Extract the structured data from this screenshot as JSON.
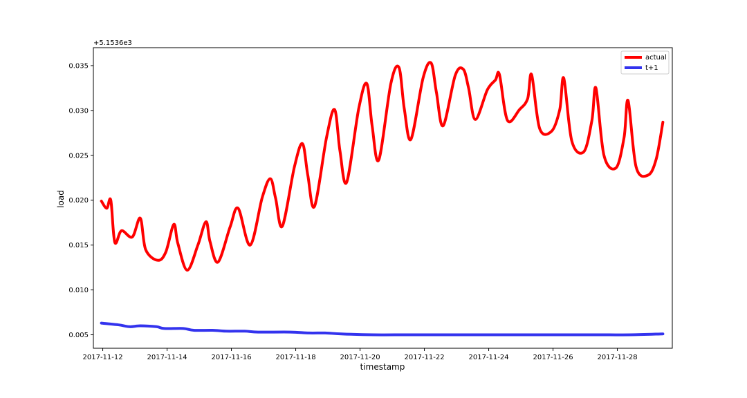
{
  "chart_data": {
    "type": "line",
    "title": "",
    "xlabel": "timestamp",
    "ylabel": "load",
    "offset_label": "+5.1536e3",
    "x_tick_labels": [
      "2017-11-12",
      "2017-11-14",
      "2017-11-16",
      "2017-11-18",
      "2017-11-20",
      "2017-11-22",
      "2017-11-24",
      "2017-11-26",
      "2017-11-28"
    ],
    "y_tick_labels": [
      "0.005",
      "0.010",
      "0.015",
      "0.020",
      "0.025",
      "0.030",
      "0.035"
    ],
    "y_ticks": [
      0.005,
      0.01,
      0.015,
      0.02,
      0.025,
      0.03,
      0.035
    ],
    "xlim": [
      "2017-11-11T17:00",
      "2017-11-29T17:00"
    ],
    "ylim": [
      0.0035,
      0.037
    ],
    "grid": false,
    "legend_position": "top-right",
    "series": [
      {
        "name": "actual",
        "color": "#ff0000",
        "points": [
          [
            "2017-11-11T23:00",
            0.0199
          ],
          [
            "2017-11-12T03:00",
            0.0191
          ],
          [
            "2017-11-12T06:00",
            0.02
          ],
          [
            "2017-11-12T09:00",
            0.0153
          ],
          [
            "2017-11-12T14:00",
            0.0166
          ],
          [
            "2017-11-12T22:00",
            0.0159
          ],
          [
            "2017-11-13T04:00",
            0.018
          ],
          [
            "2017-11-13T08:00",
            0.0145
          ],
          [
            "2017-11-13T17:00",
            0.0133
          ],
          [
            "2017-11-13T23:00",
            0.0142
          ],
          [
            "2017-11-14T05:00",
            0.0173
          ],
          [
            "2017-11-14T08:00",
            0.0152
          ],
          [
            "2017-11-14T15:00",
            0.0122
          ],
          [
            "2017-11-14T23:00",
            0.015
          ],
          [
            "2017-11-15T05:00",
            0.0176
          ],
          [
            "2017-11-15T08:00",
            0.0154
          ],
          [
            "2017-11-15T14:00",
            0.0131
          ],
          [
            "2017-11-15T23:00",
            0.017
          ],
          [
            "2017-11-16T05:00",
            0.0191
          ],
          [
            "2017-11-16T14:00",
            0.015
          ],
          [
            "2017-11-16T23:00",
            0.0203
          ],
          [
            "2017-11-17T05:00",
            0.0224
          ],
          [
            "2017-11-17T09:00",
            0.0202
          ],
          [
            "2017-11-17T14:00",
            0.0171
          ],
          [
            "2017-11-17T23:00",
            0.0237
          ],
          [
            "2017-11-18T05:00",
            0.0263
          ],
          [
            "2017-11-18T09:00",
            0.0228
          ],
          [
            "2017-11-18T14:00",
            0.0193
          ],
          [
            "2017-11-18T23:00",
            0.027
          ],
          [
            "2017-11-19T05:00",
            0.0301
          ],
          [
            "2017-11-19T09:00",
            0.0255
          ],
          [
            "2017-11-19T14:00",
            0.022
          ],
          [
            "2017-11-19T23:00",
            0.0302
          ],
          [
            "2017-11-20T05:00",
            0.033
          ],
          [
            "2017-11-20T09:00",
            0.0283
          ],
          [
            "2017-11-20T14:00",
            0.0245
          ],
          [
            "2017-11-20T23:00",
            0.033
          ],
          [
            "2017-11-21T05:00",
            0.0348
          ],
          [
            "2017-11-21T09:00",
            0.0302
          ],
          [
            "2017-11-21T14:00",
            0.0268
          ],
          [
            "2017-11-21T23:00",
            0.0336
          ],
          [
            "2017-11-22T05:00",
            0.0353
          ],
          [
            "2017-11-22T09:00",
            0.032
          ],
          [
            "2017-11-22T14:00",
            0.0283
          ],
          [
            "2017-11-22T23:00",
            0.0339
          ],
          [
            "2017-11-23T05:00",
            0.0346
          ],
          [
            "2017-11-23T09:00",
            0.0325
          ],
          [
            "2017-11-23T14:00",
            0.029
          ],
          [
            "2017-11-23T23:00",
            0.0323
          ],
          [
            "2017-11-24T05:00",
            0.0334
          ],
          [
            "2017-11-24T08:00",
            0.034
          ],
          [
            "2017-11-24T14:00",
            0.0289
          ],
          [
            "2017-11-24T23:00",
            0.0301
          ],
          [
            "2017-11-25T05:00",
            0.0313
          ],
          [
            "2017-11-25T08:00",
            0.034
          ],
          [
            "2017-11-25T14:00",
            0.028
          ],
          [
            "2017-11-25T23:00",
            0.0277
          ],
          [
            "2017-11-26T05:00",
            0.0301
          ],
          [
            "2017-11-26T08:00",
            0.0336
          ],
          [
            "2017-11-26T14:00",
            0.0266
          ],
          [
            "2017-11-26T23:00",
            0.0254
          ],
          [
            "2017-11-27T05:00",
            0.0289
          ],
          [
            "2017-11-27T08:00",
            0.0325
          ],
          [
            "2017-11-27T14:00",
            0.025
          ],
          [
            "2017-11-27T23:00",
            0.0236
          ],
          [
            "2017-11-28T05:00",
            0.027
          ],
          [
            "2017-11-28T08:00",
            0.0311
          ],
          [
            "2017-11-28T14:00",
            0.0237
          ],
          [
            "2017-11-28T23:00",
            0.0228
          ],
          [
            "2017-11-29T05:00",
            0.0246
          ],
          [
            "2017-11-29T10:00",
            0.0287
          ]
        ]
      },
      {
        "name": "t+1",
        "color": "#3333ee",
        "points": [
          [
            "2017-11-11T23:00",
            0.0063
          ],
          [
            "2017-11-12T12:00",
            0.0061
          ],
          [
            "2017-11-12T20:00",
            0.0059
          ],
          [
            "2017-11-13T04:00",
            0.006
          ],
          [
            "2017-11-13T16:00",
            0.0059
          ],
          [
            "2017-11-13T22:00",
            0.0057
          ],
          [
            "2017-11-14T12:00",
            0.0057
          ],
          [
            "2017-11-14T20:00",
            0.0055
          ],
          [
            "2017-11-15T10:00",
            0.0055
          ],
          [
            "2017-11-15T20:00",
            0.0054
          ],
          [
            "2017-11-16T10:00",
            0.0054
          ],
          [
            "2017-11-16T20:00",
            0.0053
          ],
          [
            "2017-11-17T20:00",
            0.0053
          ],
          [
            "2017-11-18T10:00",
            0.0052
          ],
          [
            "2017-11-18T22:00",
            0.0052
          ],
          [
            "2017-11-19T10:00",
            0.0051
          ],
          [
            "2017-11-20T10:00",
            0.005
          ],
          [
            "2017-11-21T10:00",
            0.005
          ],
          [
            "2017-11-22T10:00",
            0.005
          ],
          [
            "2017-11-23T10:00",
            0.005
          ],
          [
            "2017-11-24T10:00",
            0.005
          ],
          [
            "2017-11-25T10:00",
            0.005
          ],
          [
            "2017-11-26T10:00",
            0.005
          ],
          [
            "2017-11-27T10:00",
            0.005
          ],
          [
            "2017-11-28T10:00",
            0.005
          ],
          [
            "2017-11-29T10:00",
            0.0051
          ]
        ]
      }
    ]
  }
}
